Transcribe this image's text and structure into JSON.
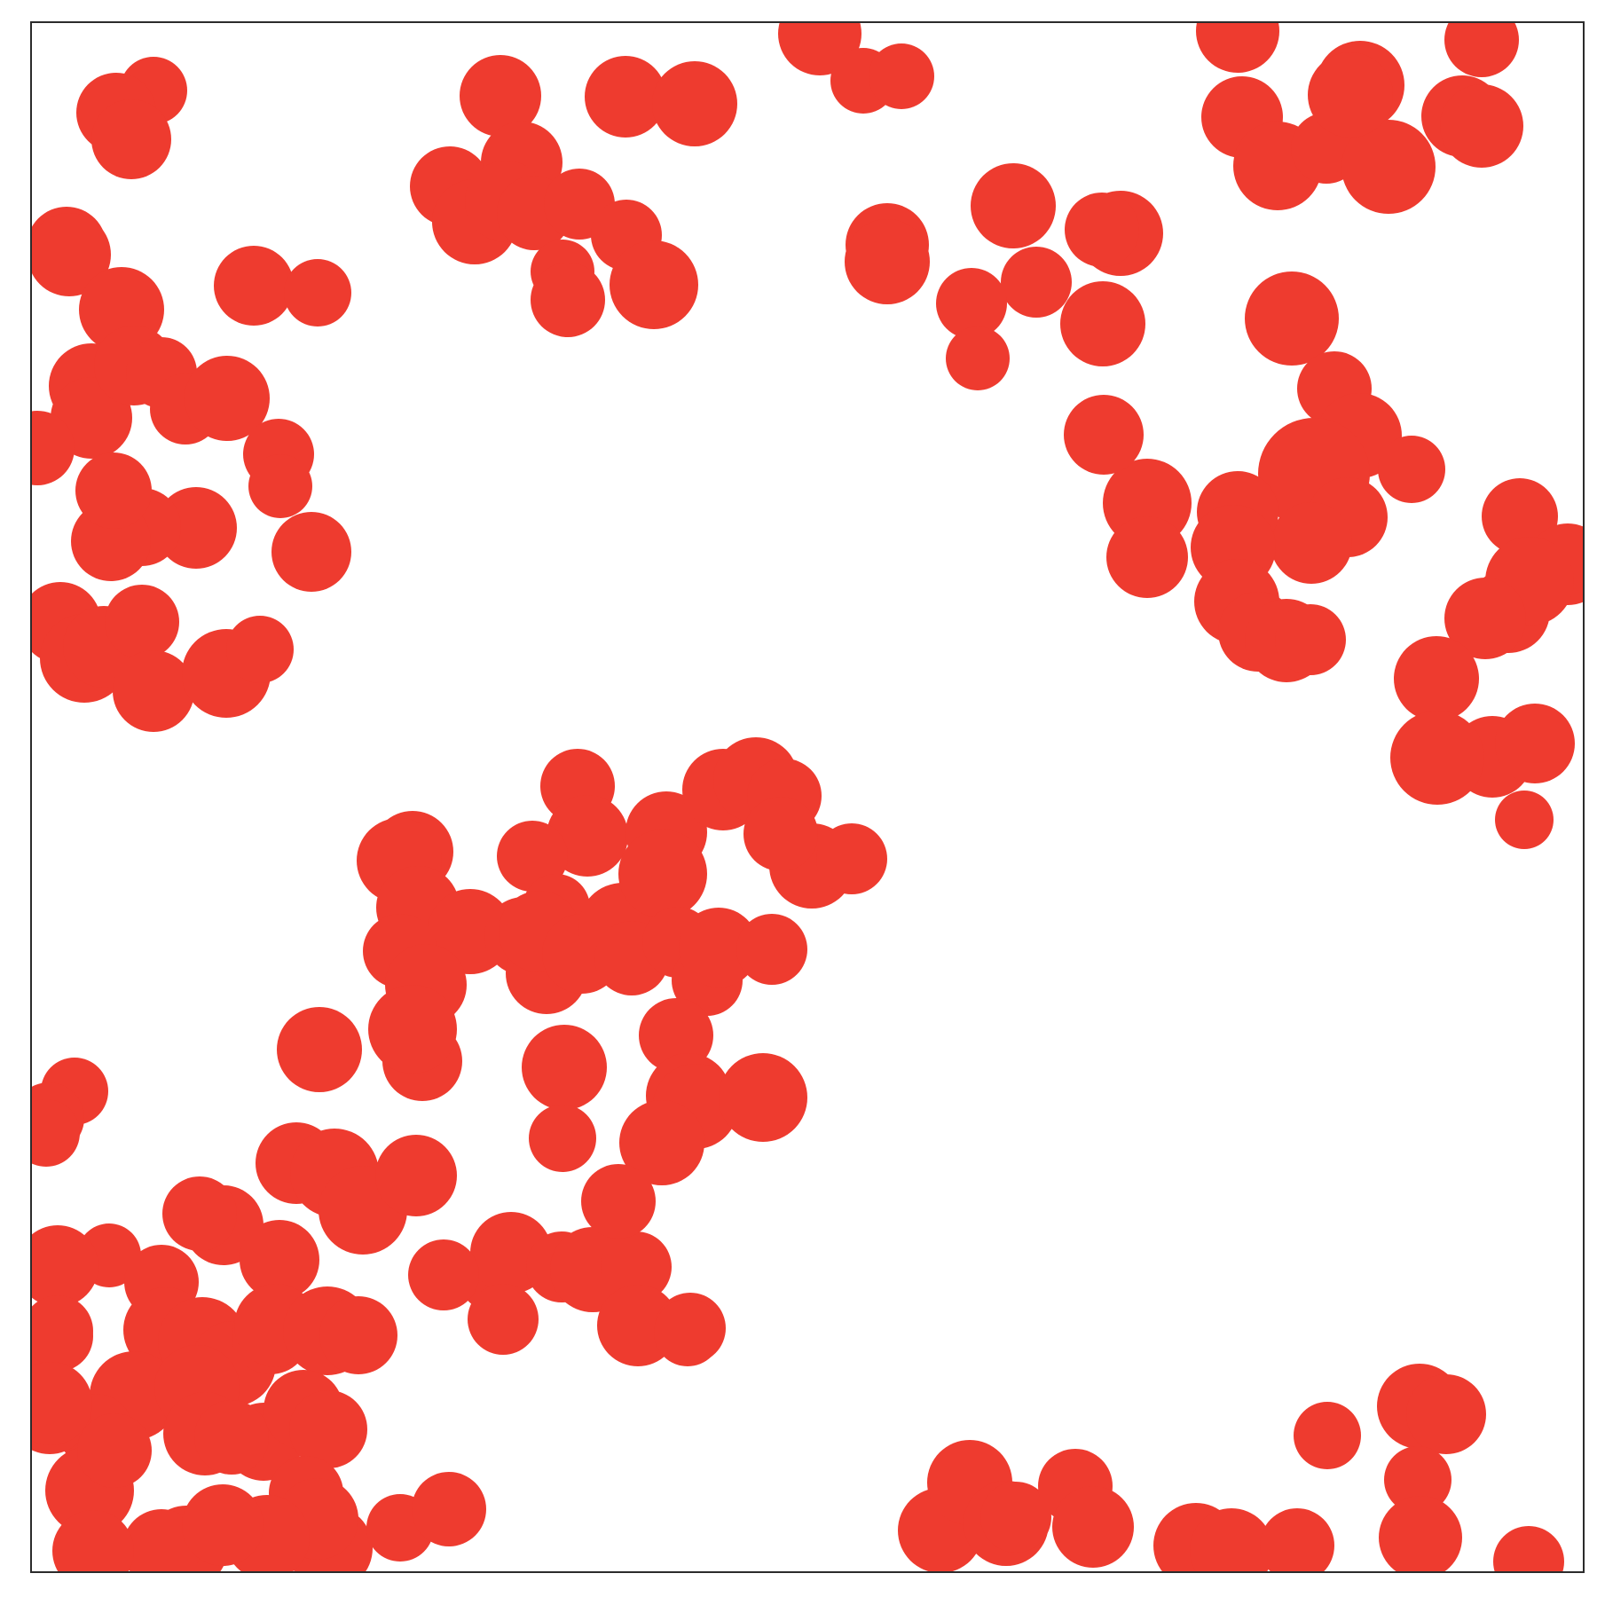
{
  "colors": {
    "circle_fill": "#EE3B2F",
    "frame_stroke": "#2B2B2B",
    "background": "#FFFFFF"
  },
  "frame": {
    "x_range": [
      35,
      1785
    ],
    "y_range": [
      25,
      1772
    ]
  },
  "circles": [
    [
      173,
      102,
      38
    ],
    [
      131,
      127,
      45
    ],
    [
      148,
      157,
      45
    ],
    [
      564,
      108,
      46
    ],
    [
      588,
      183,
      46
    ],
    [
      705,
      109,
      46
    ],
    [
      783,
      117,
      48
    ],
    [
      924,
      38,
      47
    ],
    [
      973,
      91,
      37
    ],
    [
      1016,
      86,
      37
    ],
    [
      1395,
      35,
      47
    ],
    [
      1670,
      45,
      42
    ],
    [
      1400,
      132,
      46
    ],
    [
      1440,
      187,
      50
    ],
    [
      1533,
      96,
      50
    ],
    [
      1495,
      167,
      40
    ],
    [
      1565,
      188,
      53
    ],
    [
      1648,
      131,
      46
    ],
    [
      1670,
      142,
      47
    ],
    [
      1522,
      107,
      48
    ],
    [
      507,
      210,
      45
    ],
    [
      535,
      250,
      48
    ],
    [
      570,
      227,
      46
    ],
    [
      602,
      240,
      42
    ],
    [
      653,
      230,
      40
    ],
    [
      706,
      265,
      40
    ],
    [
      634,
      306,
      36
    ],
    [
      640,
      338,
      42
    ],
    [
      737,
      321,
      50
    ],
    [
      1000,
      276,
      47
    ],
    [
      1000,
      295,
      48
    ],
    [
      1142,
      232,
      48
    ],
    [
      1263,
      263,
      48
    ],
    [
      1242,
      259,
      42
    ],
    [
      1168,
      318,
      40
    ],
    [
      1095,
      342,
      40
    ],
    [
      1102,
      404,
      36
    ],
    [
      1243,
      365,
      48
    ],
    [
      1456,
      359,
      53
    ],
    [
      1504,
      438,
      42
    ],
    [
      1485,
      519,
      46
    ],
    [
      1532,
      491,
      48
    ],
    [
      1481,
      534,
      63
    ],
    [
      1591,
      529,
      38
    ],
    [
      1519,
      583,
      45
    ],
    [
      1478,
      612,
      46
    ],
    [
      1395,
      577,
      46
    ],
    [
      1293,
      567,
      50
    ],
    [
      1293,
      628,
      46
    ],
    [
      1390,
      617,
      48
    ],
    [
      1394,
      678,
      48
    ],
    [
      1418,
      712,
      45
    ],
    [
      1450,
      722,
      47
    ],
    [
      1477,
      721,
      40
    ],
    [
      1244,
      490,
      45
    ],
    [
      1713,
      582,
      43
    ],
    [
      1767,
      636,
      46
    ],
    [
      1700,
      689,
      47
    ],
    [
      1724,
      655,
      50
    ],
    [
      1674,
      697,
      46
    ],
    [
      1619,
      765,
      48
    ],
    [
      1682,
      853,
      46
    ],
    [
      1730,
      838,
      45
    ],
    [
      1620,
      854,
      53
    ],
    [
      1718,
      924,
      33
    ],
    [
      75,
      278,
      45
    ],
    [
      78,
      287,
      47
    ],
    [
      137,
      349,
      48
    ],
    [
      286,
      322,
      45
    ],
    [
      358,
      330,
      38
    ],
    [
      103,
      435,
      48
    ],
    [
      103,
      471,
      46
    ],
    [
      151,
      412,
      45
    ],
    [
      182,
      420,
      40
    ],
    [
      209,
      461,
      40
    ],
    [
      256,
      449,
      48
    ],
    [
      314,
      512,
      40
    ],
    [
      316,
      548,
      36
    ],
    [
      351,
      622,
      45
    ],
    [
      221,
      595,
      46
    ],
    [
      160,
      594,
      44
    ],
    [
      125,
      610,
      45
    ],
    [
      128,
      553,
      43
    ],
    [
      42,
      505,
      42
    ],
    [
      68,
      702,
      46
    ],
    [
      95,
      742,
      50
    ],
    [
      117,
      729,
      46
    ],
    [
      160,
      701,
      42
    ],
    [
      173,
      779,
      46
    ],
    [
      255,
      759,
      50
    ],
    [
      293,
      732,
      38
    ],
    [
      465,
      960,
      46
    ],
    [
      450,
      970,
      48
    ],
    [
      471,
      1023,
      47
    ],
    [
      530,
      1050,
      48
    ],
    [
      451,
      1072,
      42
    ],
    [
      480,
      1110,
      46
    ],
    [
      590,
      1055,
      44
    ],
    [
      616,
      1097,
      46
    ],
    [
      651,
      886,
      42
    ],
    [
      662,
      942,
      46
    ],
    [
      600,
      965,
      40
    ],
    [
      627,
      1023,
      38
    ],
    [
      608,
      1050,
      46
    ],
    [
      656,
      1075,
      45
    ],
    [
      702,
      1045,
      50
    ],
    [
      712,
      1080,
      42
    ],
    [
      751,
      938,
      46
    ],
    [
      747,
      985,
      50
    ],
    [
      764,
      1062,
      40
    ],
    [
      797,
      1105,
      40
    ],
    [
      810,
      1068,
      45
    ],
    [
      815,
      890,
      46
    ],
    [
      852,
      879,
      48
    ],
    [
      884,
      897,
      42
    ],
    [
      915,
      976,
      48
    ],
    [
      960,
      968,
      40
    ],
    [
      870,
      1070,
      40
    ],
    [
      880,
      940,
      42
    ],
    [
      762,
      1167,
      42
    ],
    [
      776,
      1235,
      48
    ],
    [
      784,
      1247,
      48
    ],
    [
      860,
      1237,
      50
    ],
    [
      746,
      1288,
      48
    ],
    [
      636,
      1203,
      48
    ],
    [
      634,
      1283,
      38
    ],
    [
      84,
      1230,
      38
    ],
    [
      55,
      1260,
      40
    ],
    [
      476,
      1196,
      45
    ],
    [
      465,
      1160,
      50
    ],
    [
      360,
      1183,
      48
    ],
    [
      334,
      1311,
      46
    ],
    [
      377,
      1322,
      50
    ],
    [
      409,
      1364,
      50
    ],
    [
      469,
      1325,
      46
    ],
    [
      252,
      1381,
      45
    ],
    [
      225,
      1368,
      42
    ],
    [
      315,
      1420,
      45
    ],
    [
      123,
      1415,
      36
    ],
    [
      65,
      1427,
      46
    ],
    [
      182,
      1445,
      42
    ],
    [
      187,
      1499,
      48
    ],
    [
      65,
      1506,
      40
    ],
    [
      48,
      1520,
      40
    ],
    [
      228,
      1512,
      50
    ],
    [
      263,
      1537,
      48
    ],
    [
      305,
      1505,
      44
    ],
    [
      311,
      1494,
      47
    ],
    [
      369,
      1500,
      50
    ],
    [
      404,
      1505,
      44
    ],
    [
      151,
      1573,
      50
    ],
    [
      108,
      1613,
      42
    ],
    [
      56,
      1592,
      47
    ],
    [
      101,
      1680,
      50
    ],
    [
      129,
      1635,
      42
    ],
    [
      222,
      1564,
      48
    ],
    [
      231,
      1616,
      47
    ],
    [
      297,
      1625,
      44
    ],
    [
      261,
      1620,
      42
    ],
    [
      342,
      1589,
      45
    ],
    [
      370,
      1611,
      44
    ],
    [
      345,
      1683,
      42
    ],
    [
      372,
      1745,
      48
    ],
    [
      358,
      1712,
      46
    ],
    [
      301,
      1733,
      48
    ],
    [
      210,
      1744,
      47
    ],
    [
      182,
      1745,
      44
    ],
    [
      251,
      1719,
      46
    ],
    [
      105,
      1748,
      46
    ],
    [
      451,
      1722,
      38
    ],
    [
      506,
      1701,
      42
    ],
    [
      555,
      1440,
      38
    ],
    [
      576,
      1412,
      46
    ],
    [
      633,
      1428,
      40
    ],
    [
      668,
      1431,
      48
    ],
    [
      500,
      1437,
      40
    ],
    [
      567,
      1487,
      40
    ],
    [
      717,
      1428,
      40
    ],
    [
      719,
      1494,
      46
    ],
    [
      778,
      1497,
      40
    ],
    [
      697,
      1354,
      42
    ],
    [
      775,
      1502,
      38
    ],
    [
      1060,
      1725,
      48
    ],
    [
      1093,
      1671,
      48
    ],
    [
      1134,
      1717,
      48
    ],
    [
      1145,
      1710,
      40
    ],
    [
      1212,
      1675,
      42
    ],
    [
      1232,
      1721,
      46
    ],
    [
      1348,
      1742,
      48
    ],
    [
      1388,
      1747,
      47
    ],
    [
      1462,
      1742,
      42
    ],
    [
      1496,
      1618,
      38
    ],
    [
      1600,
      1585,
      48
    ],
    [
      1630,
      1594,
      45
    ],
    [
      1598,
      1668,
      38
    ],
    [
      1601,
      1733,
      47
    ],
    [
      1723,
      1760,
      40
    ],
    [
      52,
      1277,
      38
    ],
    [
      65,
      1500,
      40
    ],
    [
      57,
      1582,
      47
    ]
  ]
}
